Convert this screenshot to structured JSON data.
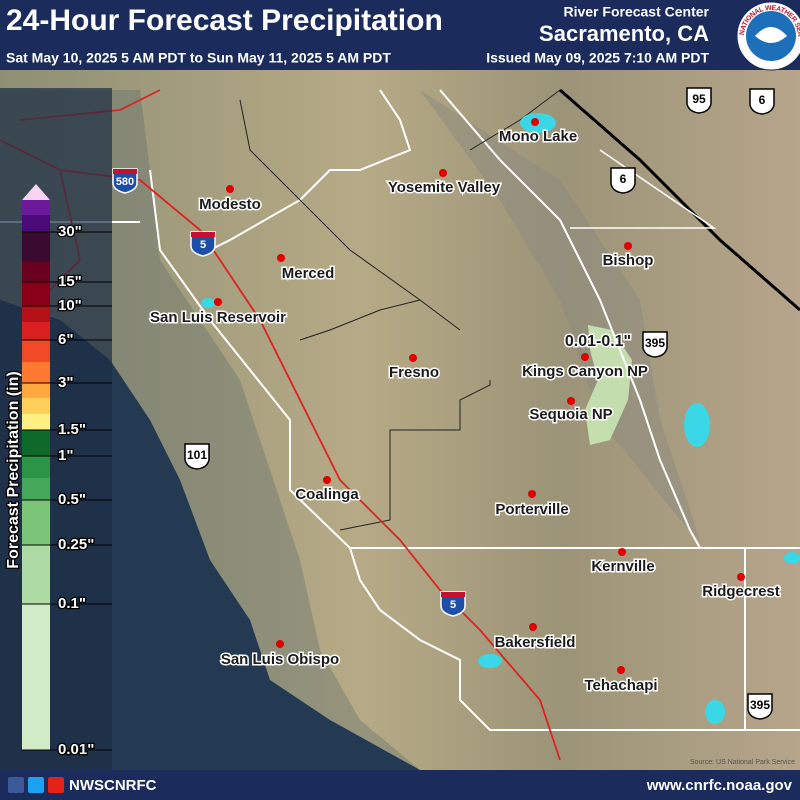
{
  "header": {
    "title": "24-Hour Forecast Precipitation",
    "valid_period": "Sat May 10, 2025 5 AM PDT to Sun May 11, 2025 5 AM PDT",
    "issued": "Issued May 09, 2025 7:10 AM PDT",
    "office_line1": "River Forecast Center",
    "office_line2": "Sacramento, CA",
    "logo_text": "NATIONAL WEATHER SERVICE"
  },
  "legend": {
    "title": "Forecast Precipitation (in)",
    "labels": [
      "30\"",
      "15\"",
      "10\"",
      "6\"",
      "3\"",
      "1.5\"",
      "1\"",
      "0.5\"",
      "0.25\"",
      "0.1\"",
      "0.01\""
    ]
  },
  "map": {
    "cities": [
      "Mono Lake",
      "Yosemite Valley",
      "Modesto",
      "Merced",
      "Bishop",
      "San Luis Reservoir",
      "Kings Canyon NP",
      "Fresno",
      "Sequoia NP",
      "Coalinga",
      "Porterville",
      "Kernville",
      "Ridgecrest",
      "Bakersfield",
      "San Luis Obispo",
      "Tehachapi"
    ],
    "precip_label": "0.01-0.1\"",
    "shields": [
      "580",
      "5",
      "5",
      "101",
      "395",
      "395",
      "6",
      "6",
      "95"
    ],
    "source": "Source: US National Park Service"
  },
  "footer": {
    "social": "NWSCNRFC",
    "url": "www.cnrfc.noaa.gov"
  }
}
